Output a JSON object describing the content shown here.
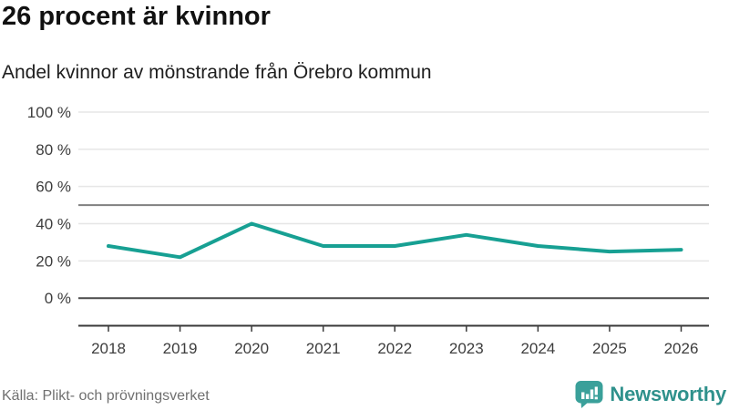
{
  "header": {
    "title": "26 procent är kvinnor",
    "subtitle": "Andel kvinnor av mönstrande från Örebro kommun"
  },
  "chart_data": {
    "type": "line",
    "title": "26 procent är kvinnor",
    "subtitle": "Andel kvinnor av mönstrande från Örebro kommun",
    "categories": [
      2018,
      2019,
      2020,
      2021,
      2022,
      2023,
      2024,
      2025,
      2026
    ],
    "series": [
      {
        "name": "Andel kvinnor av mönstrande",
        "values": [
          28,
          22,
          40,
          28,
          28,
          34,
          28,
          25,
          26
        ]
      }
    ],
    "unit": "%",
    "yticks": [
      0,
      20,
      40,
      60,
      80,
      100
    ],
    "ytick_labels": [
      "0 %",
      "20 %",
      "40 %",
      "60 %",
      "80 %",
      "100 %"
    ],
    "ylim": [
      0,
      100
    ],
    "reference_line": 50,
    "grid": "horizontal",
    "legend": "none",
    "line_color": "#17a093"
  },
  "footer": {
    "source": "Källa: Plikt- och prövningsverket",
    "brand_name": "Newsworthy"
  },
  "colors": {
    "accent_teal": "#17a093",
    "grid_light": "#e6e6e6",
    "grid_mid": "#808080",
    "grid_zero": "#4a4a4a",
    "axis": "#3a3a3a",
    "tick_label": "#3d3d3d",
    "title_text": "#111111",
    "source_text": "#707070",
    "brand_teal": "#2f918c",
    "logo_bubble": "#3aa09a"
  },
  "icons": {
    "logo": "newsworthy-speech-bubble-chart-icon"
  }
}
